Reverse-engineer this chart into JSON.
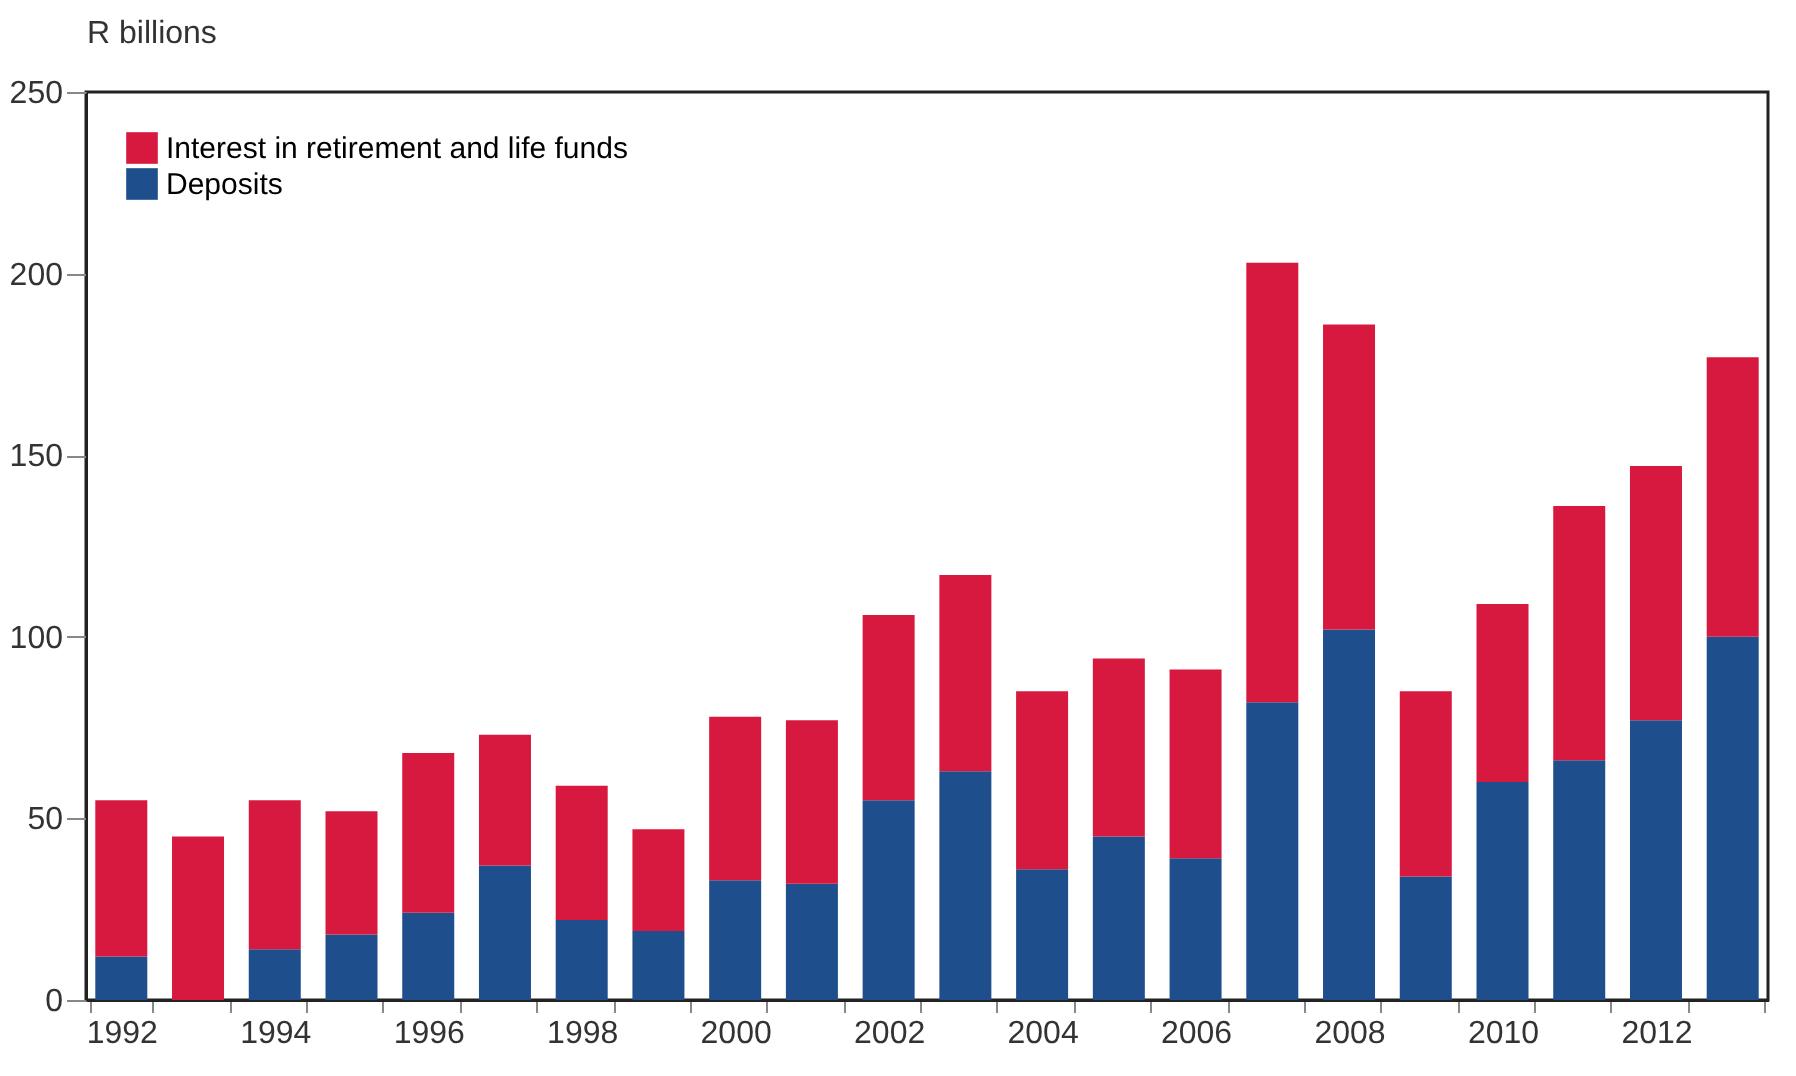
{
  "chart_data": {
    "type": "bar",
    "stacked": true,
    "ylabel": "R billions",
    "categories": [
      "1992",
      null,
      "1994",
      null,
      "1996",
      null,
      "1998",
      null,
      "2000",
      null,
      "2002",
      null,
      "2004",
      null,
      "2006",
      null,
      "2008",
      null,
      "2010",
      null,
      "2012",
      null
    ],
    "series": [
      {
        "name": "Deposits",
        "color": "#1f4e8c",
        "values": [
          12,
          0,
          14,
          18,
          24,
          37,
          22,
          19,
          33,
          32,
          55,
          63,
          36,
          45,
          39,
          82,
          102,
          34,
          60,
          66,
          77,
          100
        ]
      },
      {
        "name": "Interest in retirement and life funds",
        "color": "#d7193f",
        "values": [
          43,
          45,
          41,
          34,
          44,
          36,
          37,
          28,
          45,
          45,
          51,
          54,
          49,
          49,
          52,
          121,
          84,
          51,
          49,
          70,
          70,
          77
        ]
      }
    ],
    "ylim": [
      0,
      250
    ],
    "yticks": [
      0,
      50,
      100,
      150,
      200,
      250
    ],
    "grid": false,
    "legend": "top left"
  }
}
